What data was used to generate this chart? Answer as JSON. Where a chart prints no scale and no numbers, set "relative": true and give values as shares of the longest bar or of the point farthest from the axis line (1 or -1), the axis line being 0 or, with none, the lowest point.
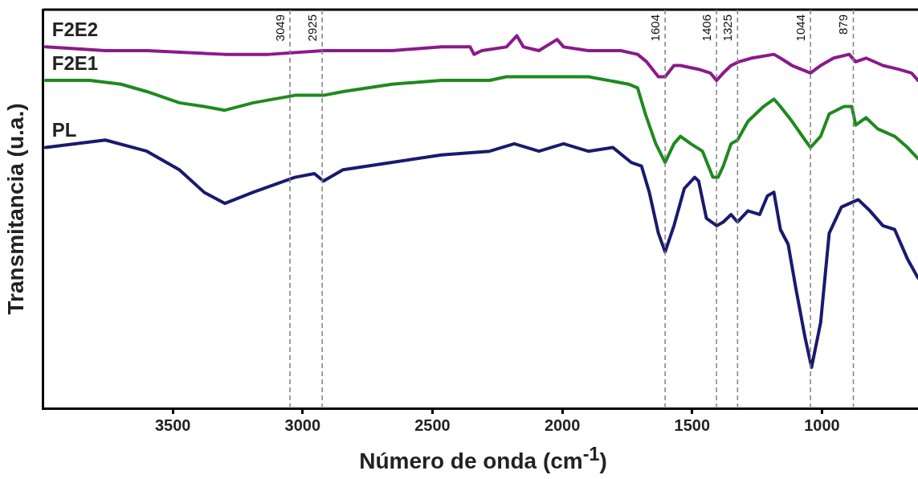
{
  "chart_data": {
    "type": "line",
    "xlabel": "Número de onda (cm$^{-1}$)",
    "ylabel": "Transmitancia (u.a.)",
    "relative": true,
    "xlim": [
      4000,
      630
    ],
    "xticks": [
      3500,
      3000,
      2500,
      2000,
      1500,
      1000
    ],
    "tick_labels": "x",
    "marker": "none",
    "line_style": "solid",
    "series": [
      {
        "name": "F2E2",
        "color": "#8b1a8b",
        "x": [
          3990,
          3760,
          3600,
          3300,
          3130,
          2920,
          2655,
          2465,
          2355,
          2340,
          2310,
          2215,
          2175,
          2150,
          2090,
          2020,
          1995,
          1900,
          1775,
          1710,
          1675,
          1630,
          1604,
          1570,
          1545,
          1475,
          1430,
          1406,
          1380,
          1350,
          1320,
          1270,
          1185,
          1160,
          1115,
          1044,
          1005,
          955,
          895,
          870,
          830,
          765,
          705,
          655,
          630
        ],
        "values": [
          0.97,
          0.96,
          0.96,
          0.95,
          0.95,
          0.96,
          0.96,
          0.97,
          0.97,
          0.95,
          0.96,
          0.97,
          1.0,
          0.97,
          0.96,
          0.99,
          0.97,
          0.96,
          0.96,
          0.95,
          0.93,
          0.89,
          0.89,
          0.92,
          0.92,
          0.91,
          0.9,
          0.88,
          0.9,
          0.92,
          0.93,
          0.94,
          0.95,
          0.94,
          0.92,
          0.9,
          0.92,
          0.94,
          0.95,
          0.93,
          0.94,
          0.92,
          0.91,
          0.9,
          0.88
        ]
      },
      {
        "name": "F2E1",
        "color": "#1f8a1f",
        "x": [
          3990,
          3820,
          3700,
          3600,
          3475,
          3380,
          3300,
          3190,
          3030,
          2920,
          2845,
          2655,
          2465,
          2280,
          2215,
          2150,
          2025,
          1900,
          1745,
          1710,
          1680,
          1640,
          1604,
          1570,
          1545,
          1505,
          1460,
          1420,
          1400,
          1380,
          1350,
          1325,
          1285,
          1225,
          1185,
          1160,
          1115,
          1065,
          1044,
          1005,
          972,
          915,
          885,
          870,
          830,
          785,
          720,
          670,
          630
        ],
        "values": [
          0.88,
          0.88,
          0.87,
          0.85,
          0.82,
          0.81,
          0.8,
          0.82,
          0.84,
          0.84,
          0.85,
          0.87,
          0.88,
          0.88,
          0.89,
          0.89,
          0.89,
          0.89,
          0.87,
          0.86,
          0.79,
          0.71,
          0.66,
          0.71,
          0.73,
          0.71,
          0.69,
          0.62,
          0.62,
          0.65,
          0.71,
          0.72,
          0.77,
          0.81,
          0.83,
          0.81,
          0.77,
          0.72,
          0.7,
          0.73,
          0.79,
          0.81,
          0.81,
          0.76,
          0.78,
          0.75,
          0.73,
          0.7,
          0.67
        ]
      },
      {
        "name": "PL",
        "color": "#1a1a6e",
        "x": [
          3990,
          3760,
          3600,
          3475,
          3380,
          3300,
          3190,
          3030,
          2955,
          2920,
          2845,
          2655,
          2465,
          2280,
          2185,
          2090,
          1995,
          1900,
          1805,
          1735,
          1695,
          1665,
          1630,
          1604,
          1570,
          1530,
          1490,
          1475,
          1445,
          1405,
          1380,
          1350,
          1325,
          1285,
          1240,
          1210,
          1185,
          1160,
          1130,
          1100,
          1065,
          1040,
          1005,
          972,
          925,
          860,
          815,
          765,
          720,
          670,
          630
        ],
        "values": [
          0.7,
          0.72,
          0.69,
          0.64,
          0.58,
          0.55,
          0.58,
          0.62,
          0.63,
          0.61,
          0.64,
          0.66,
          0.68,
          0.69,
          0.71,
          0.69,
          0.71,
          0.69,
          0.7,
          0.66,
          0.65,
          0.58,
          0.47,
          0.42,
          0.49,
          0.59,
          0.62,
          0.61,
          0.51,
          0.49,
          0.5,
          0.52,
          0.5,
          0.53,
          0.52,
          0.57,
          0.58,
          0.48,
          0.44,
          0.32,
          0.19,
          0.11,
          0.23,
          0.47,
          0.54,
          0.56,
          0.53,
          0.49,
          0.48,
          0.4,
          0.35
        ]
      }
    ],
    "ref_lines": [
      {
        "axis": "x",
        "value": 3049,
        "label": "3049",
        "color": "#808080",
        "line_style": "dashed"
      },
      {
        "axis": "x",
        "value": 2925,
        "label": "2925",
        "color": "#808080",
        "line_style": "dashed"
      },
      {
        "axis": "x",
        "value": 1604,
        "label": "1604",
        "color": "#808080",
        "line_style": "dashed"
      },
      {
        "axis": "x",
        "value": 1406,
        "label": "1406",
        "color": "#808080",
        "line_style": "dashed"
      },
      {
        "axis": "x",
        "value": 1325,
        "label": "1325",
        "color": "#808080",
        "line_style": "dashed"
      },
      {
        "axis": "x",
        "value": 1044,
        "label": "1044",
        "color": "#808080",
        "line_style": "dashed"
      },
      {
        "axis": "x",
        "value": 879,
        "label": "879",
        "color": "#808080",
        "line_style": "dashed"
      }
    ]
  }
}
